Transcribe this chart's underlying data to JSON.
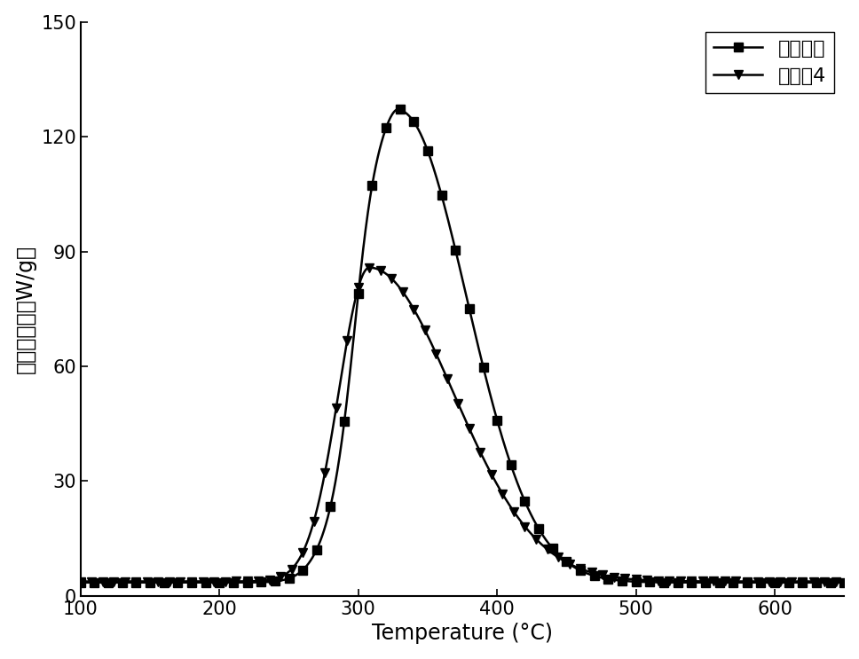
{
  "title": "",
  "xlabel": "Temperature (°C)",
  "ylabel": "热释放速率（W/g）",
  "xlim": [
    100,
    650
  ],
  "ylim": [
    0,
    150
  ],
  "xticks": [
    100,
    200,
    300,
    400,
    500,
    600
  ],
  "yticks": [
    0,
    30,
    60,
    90,
    120,
    150
  ],
  "series1_label": "羊毛原样",
  "series2_label": "实施兦4",
  "line_color": "#000000",
  "background_color": "#ffffff",
  "marker1": "s",
  "marker2": "v",
  "markersize": 7,
  "linewidth": 1.8,
  "legend_fontsize": 16,
  "axis_label_fontsize": 17,
  "tick_fontsize": 15
}
